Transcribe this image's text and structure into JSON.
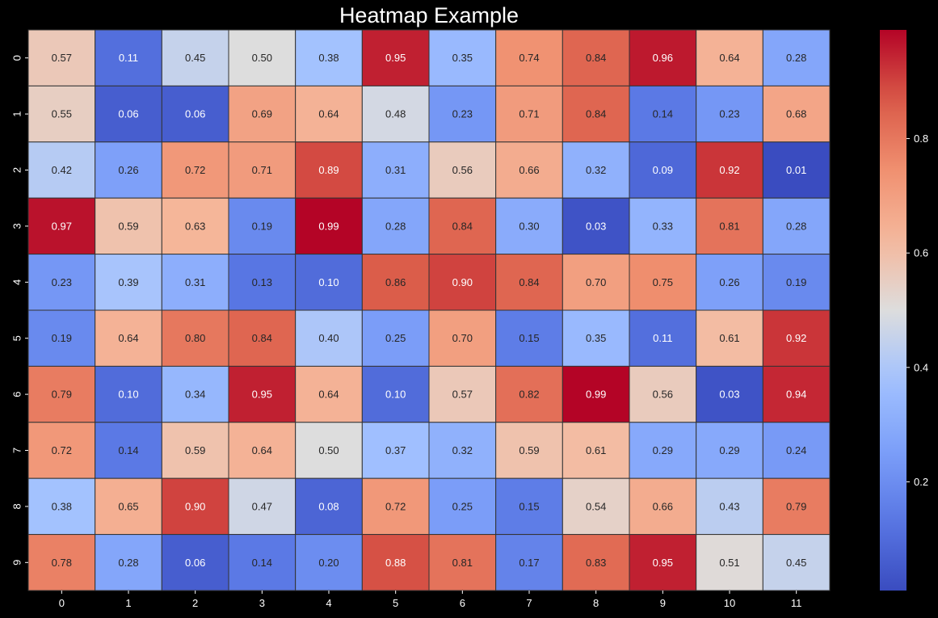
{
  "chart_data": {
    "type": "heatmap",
    "title": "Heatmap Example",
    "colormap": "coolwarm",
    "vmin": 0.01,
    "vmax": 0.99,
    "x_labels": [
      "0",
      "1",
      "2",
      "3",
      "4",
      "5",
      "6",
      "7",
      "8",
      "9",
      "10",
      "11"
    ],
    "y_labels": [
      "0",
      "1",
      "2",
      "3",
      "4",
      "5",
      "6",
      "7",
      "8",
      "9"
    ],
    "colorbar_ticks": [
      0.2,
      0.4,
      0.6,
      0.8
    ],
    "colorbar_tick_labels": [
      "0.2",
      "0.4",
      "0.6",
      "0.8"
    ],
    "values": [
      [
        0.57,
        0.11,
        0.45,
        0.5,
        0.38,
        0.95,
        0.35,
        0.74,
        0.84,
        0.96,
        0.64,
        0.28
      ],
      [
        0.55,
        0.06,
        0.06,
        0.69,
        0.64,
        0.48,
        0.23,
        0.71,
        0.84,
        0.14,
        0.23,
        0.68
      ],
      [
        0.42,
        0.26,
        0.72,
        0.71,
        0.89,
        0.31,
        0.56,
        0.66,
        0.32,
        0.09,
        0.92,
        0.01
      ],
      [
        0.97,
        0.59,
        0.63,
        0.19,
        0.99,
        0.28,
        0.84,
        0.3,
        0.03,
        0.33,
        0.81,
        0.28
      ],
      [
        0.23,
        0.39,
        0.31,
        0.13,
        0.1,
        0.86,
        0.9,
        0.84,
        0.7,
        0.75,
        0.26,
        0.19
      ],
      [
        0.19,
        0.64,
        0.8,
        0.84,
        0.4,
        0.25,
        0.7,
        0.15,
        0.35,
        0.11,
        0.61,
        0.92
      ],
      [
        0.79,
        0.1,
        0.34,
        0.95,
        0.64,
        0.1,
        0.57,
        0.82,
        0.99,
        0.56,
        0.03,
        0.94
      ],
      [
        0.72,
        0.14,
        0.59,
        0.64,
        0.5,
        0.37,
        0.32,
        0.59,
        0.61,
        0.29,
        0.29,
        0.24
      ],
      [
        0.38,
        0.65,
        0.9,
        0.47,
        0.08,
        0.72,
        0.25,
        0.15,
        0.54,
        0.66,
        0.43,
        0.79
      ],
      [
        0.78,
        0.28,
        0.06,
        0.14,
        0.2,
        0.88,
        0.81,
        0.17,
        0.83,
        0.95,
        0.51,
        0.45
      ]
    ]
  }
}
